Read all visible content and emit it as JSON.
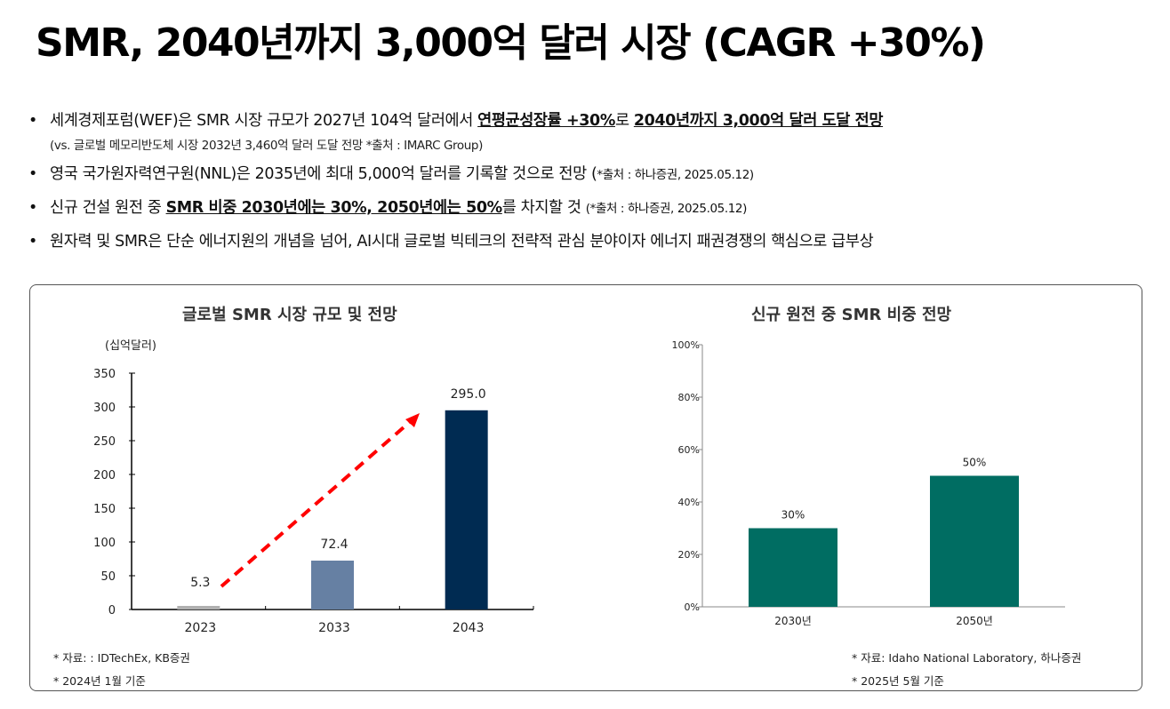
{
  "title": "SMR, 2040년까지 3,000억 달러 시장 (CAGR +30%)",
  "bullets": [
    {
      "pre": "세계경제포럼(WEF)은 SMR 시장 규모가 2027년 104억 달러에서 ",
      "b1": "연평균성장률 +30%",
      "mid": "로 ",
      "b2": "2040년까지 3,000억 달러 도달 전망"
    },
    {
      "sub": "(vs. 글로벌 메모리반도체 시장 2032년 3,460억 달러 도달 전망 *출처 : IMARC Group)"
    },
    {
      "pre": "영국 국가원자력연구원(NNL)은 2035년에 최대 5,000억 달러를 기록할 것으로 전망 (",
      "src": "*출처 : 하나증권, 2025.05.12)"
    },
    {
      "pre": "신규 건설 원전 중 ",
      "b1": "SMR 비중 2030년에는 30%, 2050년에는 50%",
      "mid": "를 차지할 것 ",
      "src": "(*출처 : 하나증권, 2025.05.12)"
    },
    {
      "pre": "원자력 및 SMR은 단순 에너지원의 개념을 넘어, AI시대 글로벌 빅테크의 전략적 관심 분야이자 에너지 패권경쟁의 핵심으로 급부상"
    }
  ],
  "chart_data": [
    {
      "type": "bar",
      "title": "글로벌 SMR 시장 규모 및 전망",
      "ylabel": "(십억달러)",
      "categories": [
        "2023",
        "2033",
        "2043"
      ],
      "values": [
        5.3,
        72.4,
        295.0
      ],
      "labels": [
        "5.3",
        "72.4",
        "295.0"
      ],
      "ylim": [
        0,
        350
      ],
      "yticks": [
        "0",
        "50",
        "100",
        "150",
        "200",
        "250",
        "300",
        "350"
      ],
      "colors": [
        "#b0b0b0",
        "#6680a3",
        "#002b52"
      ],
      "annotation": "red dashed growth arrow",
      "notes": [
        "* 자료: : IDTechEx, KB증권",
        "* 2024년 1월 기준"
      ]
    },
    {
      "type": "bar",
      "title": "신규 원전 중 SMR 비중 전망",
      "categories": [
        "2030년",
        "2050년"
      ],
      "values": [
        30,
        50
      ],
      "labels": [
        "30%",
        "50%"
      ],
      "ylim": [
        0,
        100
      ],
      "yticks": [
        "0%",
        "20%",
        "40%",
        "60%",
        "80%",
        "100%"
      ],
      "colors": [
        "#006d62",
        "#006d62"
      ],
      "notes": [
        "* 자료: Idaho National Laboratory, 하나증권",
        "* 2025년 5월 기준"
      ]
    }
  ]
}
